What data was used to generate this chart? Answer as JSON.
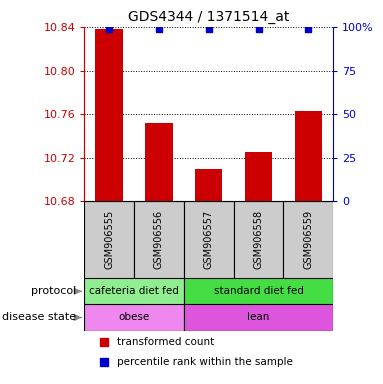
{
  "title": "GDS4344 / 1371514_at",
  "samples": [
    "GSM906555",
    "GSM906556",
    "GSM906557",
    "GSM906558",
    "GSM906559"
  ],
  "bar_values": [
    10.838,
    10.752,
    10.71,
    10.725,
    10.763
  ],
  "ymin": 10.68,
  "ymax": 10.84,
  "yticks": [
    10.68,
    10.72,
    10.76,
    10.8,
    10.84
  ],
  "ytick_labels": [
    "10.68",
    "10.72",
    "10.76",
    "10.80",
    "10.84"
  ],
  "right_yticks": [
    0,
    25,
    50,
    75,
    100
  ],
  "right_ytick_labels": [
    "0",
    "25",
    "50",
    "75",
    "100%"
  ],
  "bar_color": "#cc0000",
  "dot_color": "#0000cc",
  "bar_width": 0.55,
  "proto_spans": [
    [
      0,
      1,
      "cafeteria diet fed",
      "#90ee90"
    ],
    [
      2,
      4,
      "standard diet fed",
      "#44dd44"
    ]
  ],
  "disease_spans": [
    [
      0,
      1,
      "obese",
      "#ee88ee"
    ],
    [
      2,
      4,
      "lean",
      "#dd55dd"
    ]
  ],
  "protocol_row_label": "protocol",
  "disease_row_label": "disease state",
  "sample_box_color": "#cccccc",
  "legend_items": [
    {
      "color": "#cc0000",
      "label": "transformed count"
    },
    {
      "color": "#0000cc",
      "label": "percentile rank within the sample"
    }
  ]
}
